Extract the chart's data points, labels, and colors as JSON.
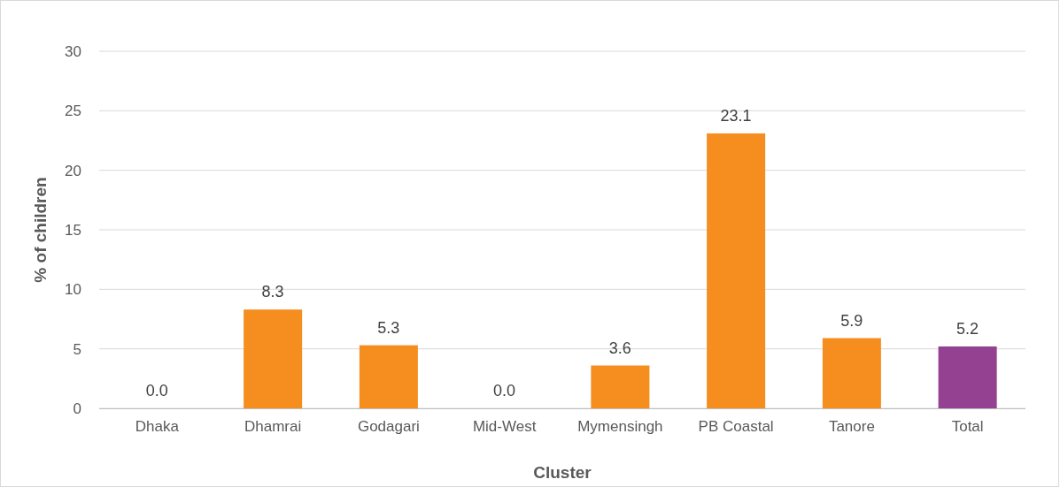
{
  "chart_data": {
    "type": "bar",
    "xlabel": "Cluster",
    "ylabel": "% of children",
    "categories": [
      "Dhaka",
      "Dhamrai",
      "Godagari",
      "Mid-West",
      "Mymensingh",
      "PB Coastal",
      "Tanore",
      "Total"
    ],
    "values": [
      0.0,
      8.3,
      5.3,
      0.0,
      3.6,
      23.1,
      5.9,
      5.2
    ],
    "value_labels": [
      "0.0",
      "8.3",
      "5.3",
      "0.0",
      "3.6",
      "23.1",
      "5.9",
      "5.2"
    ],
    "colors": [
      "#f58d1f",
      "#f58d1f",
      "#f58d1f",
      "#f58d1f",
      "#f58d1f",
      "#f58d1f",
      "#f58d1f",
      "#954191"
    ],
    "ylim": [
      0,
      30
    ],
    "yticks": [
      0,
      5,
      10,
      15,
      20,
      25,
      30
    ],
    "grid": "y"
  }
}
